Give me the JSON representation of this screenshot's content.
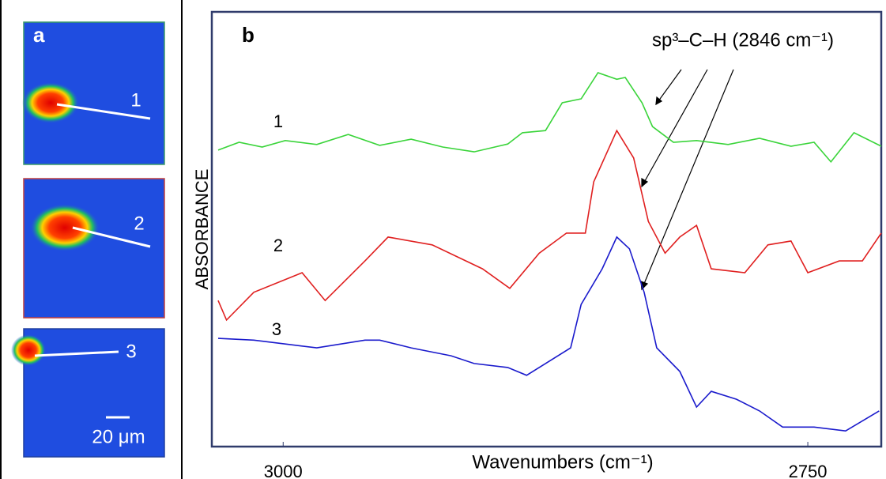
{
  "panel_a": {
    "label": "a",
    "images": [
      {
        "label": "1"
      },
      {
        "label": "2"
      },
      {
        "label": "3"
      }
    ],
    "scale_bar": "20 μm"
  },
  "chart_data": {
    "type": "line",
    "panel_label": "b",
    "annotation": "sp³–C–H (2846 cm⁻¹)",
    "x_label": "Wavenumbers (cm⁻¹)",
    "y_label": "ABSORBANCE",
    "xlim": [
      3034,
      2715
    ],
    "xticks": [
      3000,
      2750
    ],
    "ylim": [
      0,
      100
    ],
    "series": [
      {
        "name": "1",
        "color": "#3ad43a",
        "x": [
          3031,
          3021,
          3010,
          2999,
          2984,
          2969,
          2954,
          2939,
          2924,
          2909,
          2893,
          2886,
          2875,
          2867,
          2858,
          2850,
          2841,
          2837,
          2829,
          2824,
          2814,
          2803,
          2788,
          2773,
          2758,
          2747,
          2739,
          2728,
          2715
        ],
        "values": [
          68.2,
          70,
          68.9,
          70.4,
          69.5,
          71.8,
          69.3,
          70.7,
          68.9,
          67.8,
          69.6,
          72.2,
          72.7,
          79.1,
          80,
          86,
          84.5,
          84.9,
          79.1,
          73.6,
          70,
          70.4,
          69.5,
          70.9,
          69.1,
          70,
          65.5,
          72.2,
          69.1
        ]
      },
      {
        "name": "2",
        "color": "#e02020",
        "x": [
          3031,
          3027,
          3014,
          2991,
          2980,
          2961,
          2950,
          2929,
          2905,
          2892,
          2878,
          2865,
          2856,
          2852,
          2841,
          2833,
          2826,
          2818,
          2811,
          2803,
          2796,
          2780,
          2769,
          2758,
          2750,
          2735,
          2724,
          2715
        ],
        "values": [
          33.6,
          29.1,
          35.5,
          40,
          33.6,
          42.7,
          48.2,
          46.4,
          40.9,
          36.4,
          44.5,
          49.1,
          49.1,
          60.9,
          72.7,
          66.4,
          51.8,
          44.5,
          48.2,
          50.9,
          40.9,
          40,
          46.4,
          47.3,
          40,
          42.7,
          42.7,
          49.1
        ]
      },
      {
        "name": "3",
        "color": "#1a1acc",
        "x": [
          3031,
          3014,
          2999,
          2984,
          2961,
          2954,
          2939,
          2920,
          2909,
          2893,
          2884,
          2875,
          2863,
          2858,
          2848,
          2841,
          2835,
          2828,
          2822,
          2811,
          2803,
          2796,
          2784,
          2773,
          2762,
          2747,
          2732,
          2716
        ],
        "values": [
          24.9,
          24.5,
          23.6,
          22.7,
          24.5,
          24.5,
          22.7,
          20.9,
          19.1,
          18.2,
          16.4,
          19.1,
          22.7,
          32.7,
          40.9,
          48.2,
          45.5,
          35.5,
          22.7,
          17.3,
          9.1,
          12.7,
          10.9,
          8.2,
          4.5,
          4.5,
          3.6,
          8.2
        ]
      }
    ]
  }
}
